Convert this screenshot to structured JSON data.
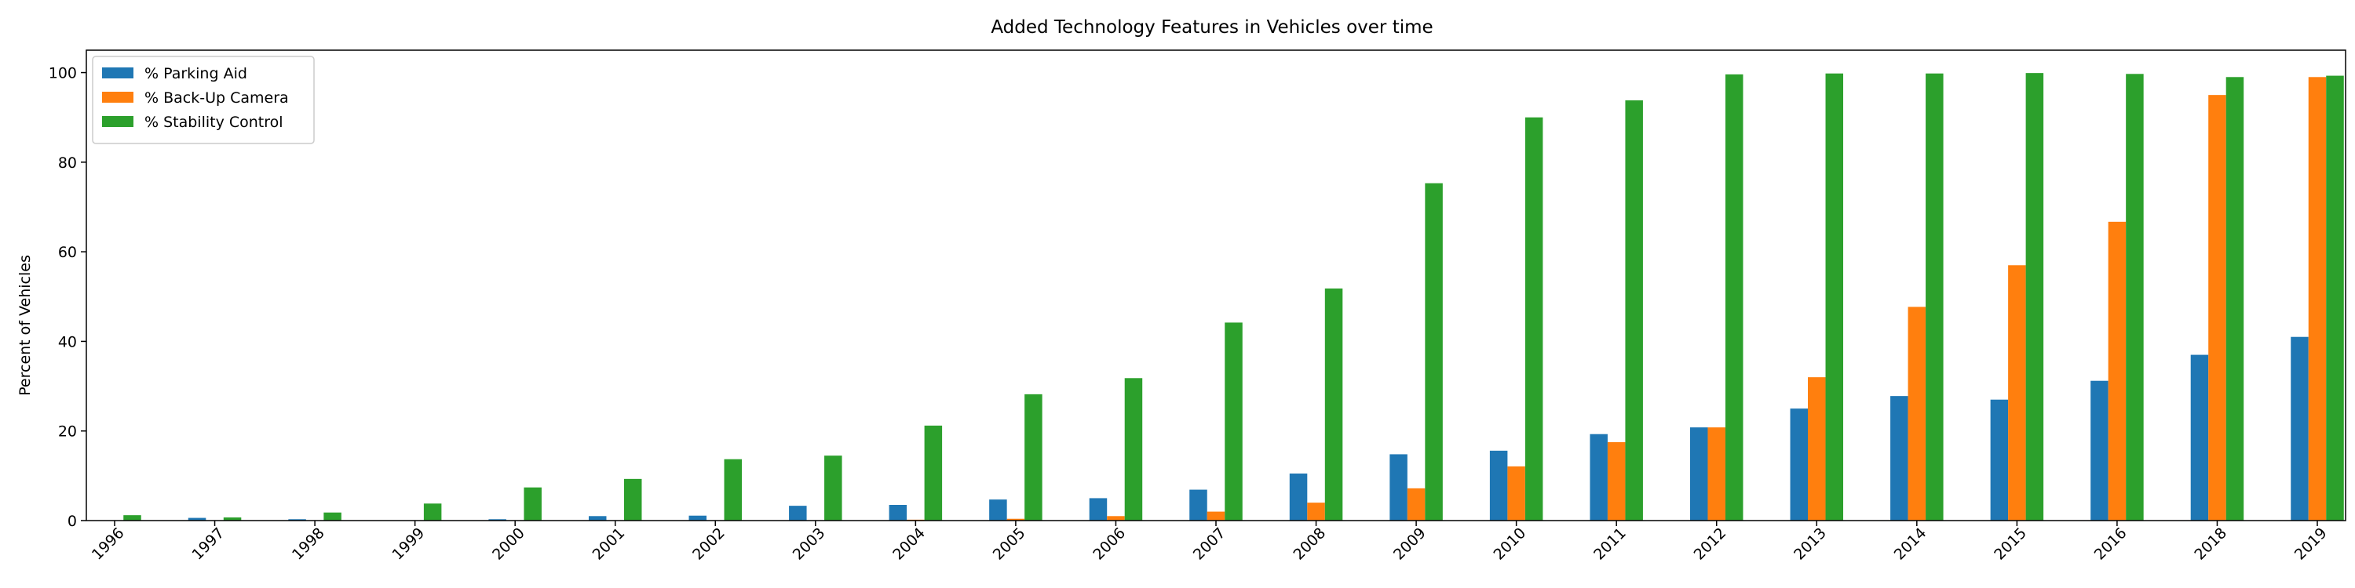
{
  "chart_data": {
    "type": "bar",
    "title": "Added Technology Features in Vehicles over time",
    "xlabel": "",
    "ylabel": "Percent of Vehicles",
    "ylim": [
      0,
      105
    ],
    "yticks": [
      0,
      20,
      40,
      60,
      80,
      100
    ],
    "grid": false,
    "legend_position": "top-left",
    "categories": [
      "1996",
      "1997",
      "1998",
      "1999",
      "2000",
      "2001",
      "2002",
      "2003",
      "2004",
      "2005",
      "2006",
      "2007",
      "2008",
      "2009",
      "2010",
      "2011",
      "2012",
      "2013",
      "2014",
      "2015",
      "2016",
      "2018",
      "2019"
    ],
    "series": [
      {
        "name": "% Parking Aid",
        "color": "#1f77b4",
        "values": [
          0,
          0.6,
          0.3,
          0,
          0.3,
          1.0,
          1.1,
          3.3,
          3.5,
          4.7,
          5.0,
          6.9,
          10.5,
          14.8,
          15.6,
          19.3,
          20.8,
          25.0,
          27.8,
          27.0,
          31.2,
          37.0,
          41.0
        ]
      },
      {
        "name": "% Back-Up Camera",
        "color": "#ff7f0e",
        "values": [
          0,
          0,
          0,
          0,
          0,
          0,
          0,
          0,
          0.2,
          0.4,
          1.0,
          2.0,
          4.0,
          7.2,
          12.1,
          17.5,
          20.8,
          32.0,
          47.7,
          57.0,
          66.7,
          95.0,
          99.0
        ]
      },
      {
        "name": "% Stability Control",
        "color": "#2ca02c",
        "values": [
          1.2,
          0.7,
          1.8,
          3.8,
          7.4,
          9.3,
          13.7,
          14.5,
          21.2,
          28.2,
          31.8,
          44.2,
          51.8,
          75.3,
          90.0,
          93.8,
          99.6,
          99.8,
          99.8,
          99.9,
          99.7,
          99.0,
          99.3
        ]
      }
    ]
  }
}
